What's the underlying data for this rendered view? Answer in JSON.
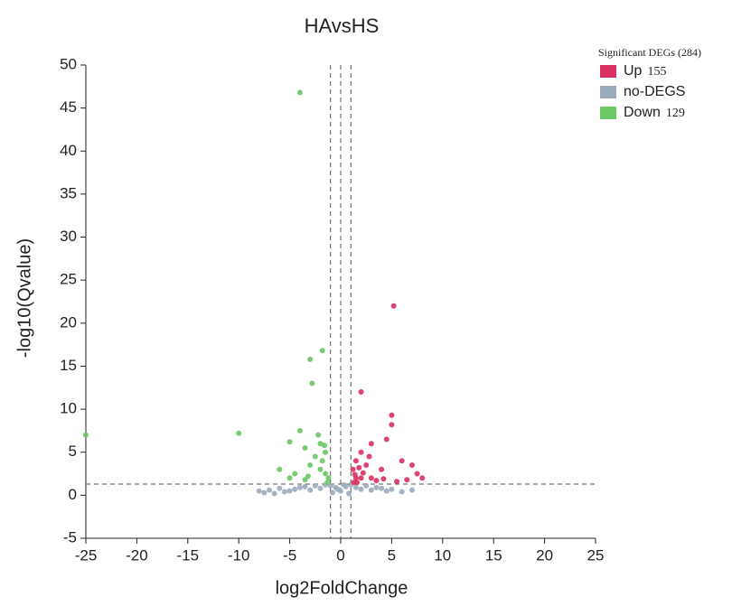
{
  "chart_data": {
    "type": "scatter",
    "title": "HAvsHS",
    "x_label": "log2FoldChange",
    "y_label": "-log10(Qvalue)",
    "xlim": [
      -25,
      25
    ],
    "xticks": [
      -25,
      -20,
      -15,
      -10,
      -5,
      0,
      5,
      10,
      15,
      20,
      25
    ],
    "ylim": [
      -5,
      50
    ],
    "yticks": [
      -5,
      0,
      5,
      10,
      15,
      20,
      25,
      30,
      35,
      40,
      45,
      50
    ],
    "legend_title": "Significant DEGs (284)",
    "legend": "top-right",
    "thresholds": {
      "x": [
        -1,
        0,
        1
      ],
      "y": [
        1.3
      ]
    },
    "series": [
      {
        "name": "Up",
        "count": 155,
        "color": "#d9305f",
        "x": [
          5.2,
          2,
          5,
          5,
          4.5,
          3,
          2,
          1.5,
          1.2,
          6,
          7,
          8,
          7.5,
          3,
          2,
          1.5,
          4,
          2.5,
          5.5,
          1.3,
          6.5,
          2.2,
          1.8,
          1.4,
          3.5,
          4.2,
          1.6,
          2.8
        ],
        "values": [
          22,
          12,
          9.3,
          8.2,
          6.5,
          6,
          5,
          4,
          3,
          4,
          3.5,
          2,
          2.5,
          2,
          2,
          2,
          3,
          3.5,
          1.6,
          1.5,
          1.8,
          2.6,
          3.2,
          2.4,
          1.7,
          1.9,
          1.5,
          4.5
        ]
      },
      {
        "name": "no-DEGS",
        "count": null,
        "color": "#9babbb",
        "x": [
          -8,
          -7.5,
          -7,
          -6,
          -5,
          -4.5,
          -4,
          -3.5,
          -3,
          -2.5,
          -2,
          -1.5,
          -1,
          -0.5,
          0,
          0.5,
          1,
          1.5,
          2,
          2.5,
          3,
          3.5,
          4,
          4.5,
          5,
          6,
          7,
          -6.5,
          -5.5,
          -0.8,
          0.8,
          0.3,
          -0.3
        ],
        "values": [
          0.5,
          0.3,
          0.6,
          0.8,
          0.5,
          0.7,
          0.9,
          1,
          0.6,
          1.1,
          0.8,
          1.2,
          1.1,
          0.9,
          0.5,
          1,
          1.2,
          0.9,
          0.7,
          1.1,
          0.6,
          0.9,
          0.8,
          0.5,
          0.7,
          0.4,
          0.6,
          0.2,
          0.4,
          0.3,
          0.2,
          1.2,
          0.7
        ]
      },
      {
        "name": "Down",
        "count": 129,
        "color": "#6cc765",
        "x": [
          -25,
          -10,
          -4,
          -1.8,
          -3,
          -2.8,
          -4,
          -5,
          -3.5,
          -2,
          -1.5,
          -6,
          -5,
          -3,
          -2,
          -1.5,
          -1.2,
          -4.5,
          -3.5,
          -2.5,
          -1.8,
          -1.3,
          -2.2,
          -1.6,
          -3.2
        ],
        "values": [
          7,
          7.2,
          46.8,
          16.8,
          15.8,
          13,
          7.5,
          6.2,
          5.5,
          6,
          5,
          3,
          2,
          3.5,
          3,
          2.5,
          2,
          2.5,
          1.8,
          4.5,
          4,
          1.5,
          7,
          5.8,
          2.2
        ]
      }
    ]
  }
}
